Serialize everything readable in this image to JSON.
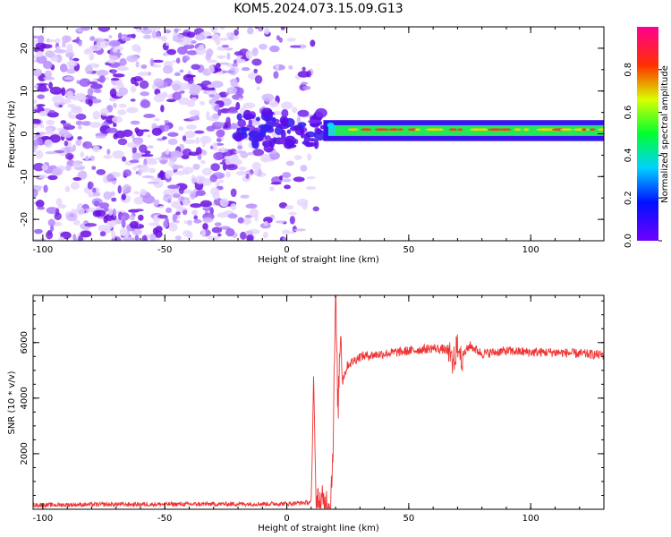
{
  "title": "KOM5.2024.073.15.09.G13",
  "chart_data": [
    {
      "type": "heatmap",
      "xlabel": "Height of straight line (km)",
      "ylabel": "Frequency (Hz)",
      "xlim": [
        -104,
        130
      ],
      "ylim": [
        -25,
        25
      ],
      "xticks": [
        -100,
        -50,
        0,
        50,
        100
      ],
      "yticks": [
        -20,
        -10,
        0,
        10,
        20
      ],
      "colorbar": {
        "label": "Normalized spectral amplitude",
        "range": [
          0,
          1
        ],
        "ticks": [
          0.0,
          0.2,
          0.4,
          0.6,
          0.8
        ],
        "colormap": "rainbow (purple-blue-cyan-green-yellow-red-magenta)"
      },
      "features": {
        "noise_region_x": [
          -104,
          12
        ],
        "signal_start_x": 12,
        "carrier_frequency_hz": 1.0,
        "carrier_band_hz": [
          -0.5,
          2.0
        ],
        "strong_segments_x": [
          [
            25,
            68
          ],
          [
            70,
            130
          ]
        ]
      },
      "colors": {
        "noise": "#8a2be2",
        "band": "#20e060",
        "core": "#ff3030"
      }
    },
    {
      "type": "line",
      "xlabel": "Height of straight line (km)",
      "ylabel": "SNR (10 * v/v)",
      "xlim": [
        -104,
        130
      ],
      "ylim": [
        0,
        7700
      ],
      "xticks": [
        -100,
        -50,
        0,
        50,
        100
      ],
      "yticks": [
        2000,
        4000,
        6000
      ],
      "series": [
        {
          "color": "#ee3333",
          "x": [
            -104,
            -80,
            -50,
            -20,
            0,
            10,
            10.5,
            11,
            11.5,
            12,
            18,
            19,
            20,
            21,
            22,
            23,
            25,
            30,
            40,
            50,
            60,
            65,
            68,
            70,
            72,
            75,
            80,
            90,
            100,
            110,
            120,
            130
          ],
          "y": [
            150,
            170,
            180,
            190,
            200,
            250,
            2200,
            4900,
            2500,
            150,
            200,
            2500,
            7700,
            3500,
            6500,
            4700,
            5200,
            5500,
            5600,
            5700,
            5800,
            5750,
            5300,
            5800,
            5500,
            5900,
            5600,
            5700,
            5650,
            5650,
            5600,
            5550
          ]
        }
      ]
    }
  ]
}
